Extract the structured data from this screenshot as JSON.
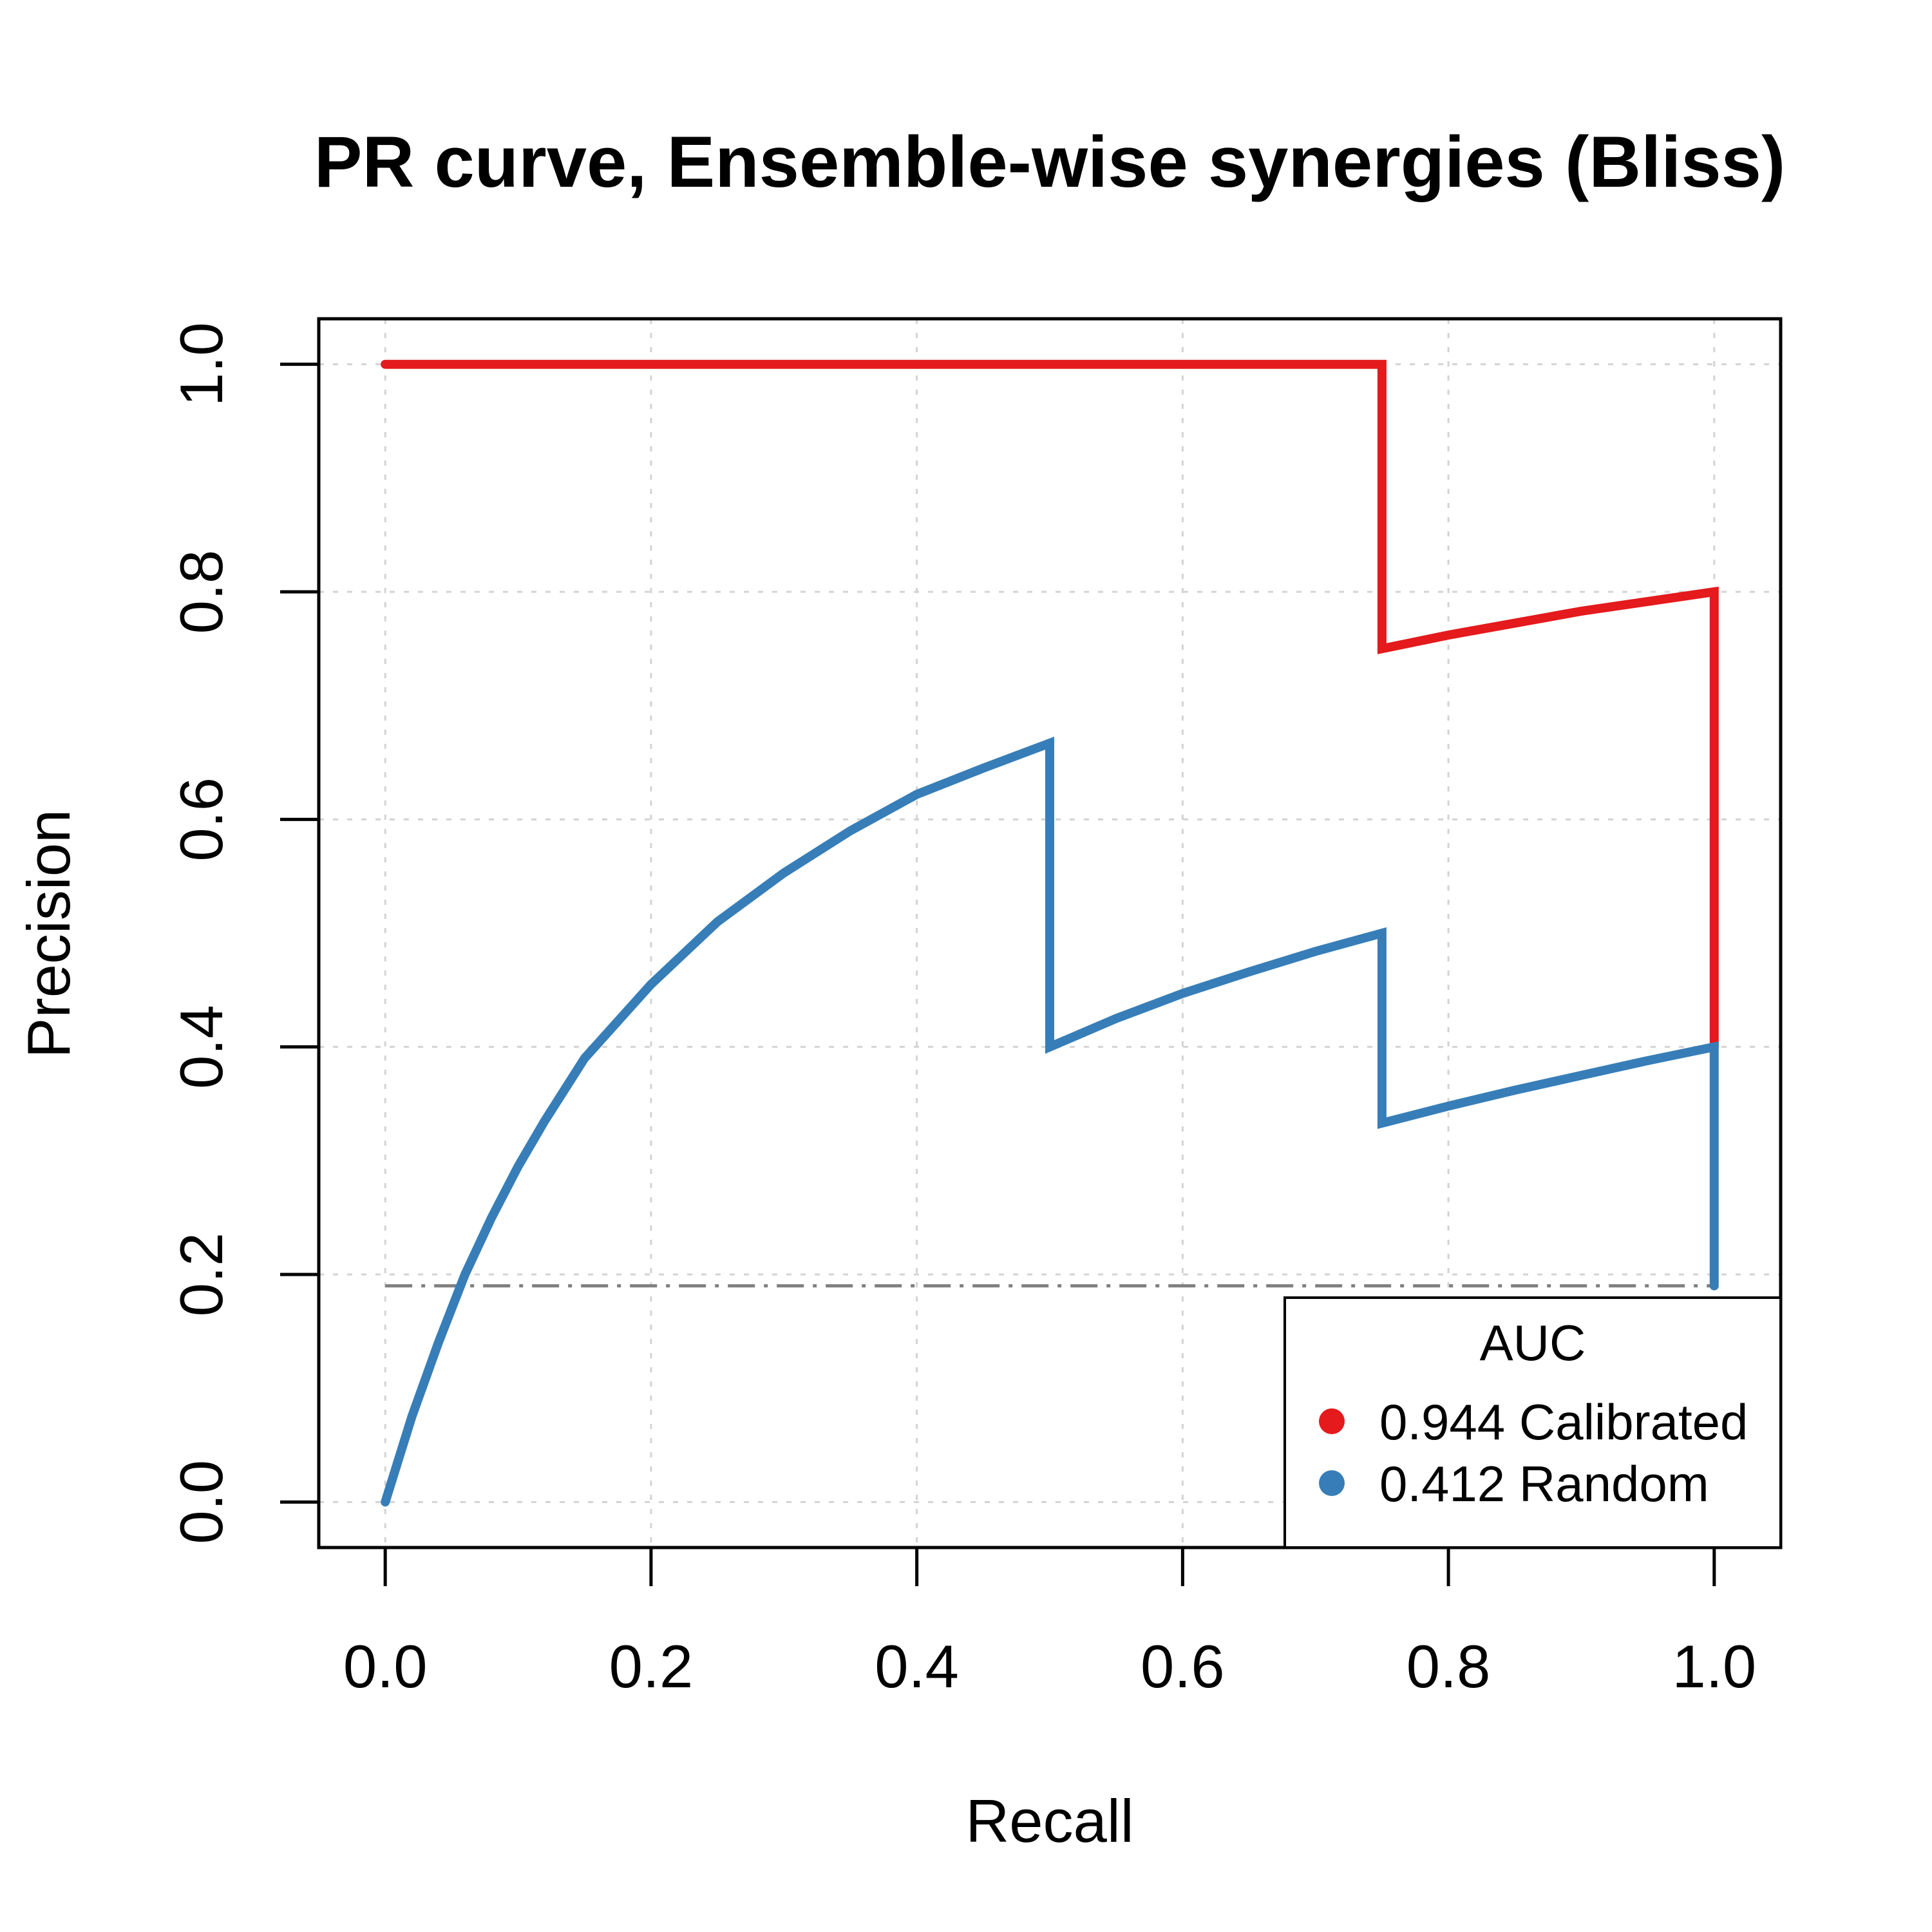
{
  "chart_data": {
    "type": "line",
    "title": "PR curve, Ensemble-wise synergies (Bliss)",
    "xlabel": "Recall",
    "ylabel": "Precision",
    "xlim": [
      -0.05,
      1.05
    ],
    "ylim": [
      -0.04,
      1.04
    ],
    "xticks": [
      0.0,
      0.2,
      0.4,
      0.6,
      0.8,
      1.0
    ],
    "yticks": [
      0.0,
      0.2,
      0.4,
      0.6,
      0.8,
      1.0
    ],
    "xtick_labels": [
      "0.0",
      "0.2",
      "0.4",
      "0.6",
      "0.8",
      "1.0"
    ],
    "ytick_labels": [
      "0.0",
      "0.2",
      "0.4",
      "0.6",
      "0.8",
      "1.0"
    ],
    "grid": true,
    "baseline": 0.19,
    "series": [
      {
        "name": "0.944 Calibrated",
        "color": "#e41a1c",
        "auc": 0.944,
        "points": [
          [
            0.0,
            1.0
          ],
          [
            0.75,
            1.0
          ],
          [
            0.75,
            0.75
          ],
          [
            0.8,
            0.762
          ],
          [
            0.9,
            0.783
          ],
          [
            1.0,
            0.8
          ],
          [
            1.0,
            0.4
          ]
        ]
      },
      {
        "name": "0.412 Random",
        "color": "#377eb8",
        "auc": 0.412,
        "points": [
          [
            0.0,
            0.0
          ],
          [
            0.02,
            0.075
          ],
          [
            0.04,
            0.14
          ],
          [
            0.06,
            0.2
          ],
          [
            0.08,
            0.25
          ],
          [
            0.1,
            0.295
          ],
          [
            0.12,
            0.335
          ],
          [
            0.15,
            0.39
          ],
          [
            0.2,
            0.455
          ],
          [
            0.25,
            0.51
          ],
          [
            0.3,
            0.553
          ],
          [
            0.35,
            0.59
          ],
          [
            0.4,
            0.622
          ],
          [
            0.45,
            0.645
          ],
          [
            0.5,
            0.667
          ],
          [
            0.5,
            0.4
          ],
          [
            0.55,
            0.425
          ],
          [
            0.6,
            0.447
          ],
          [
            0.65,
            0.466
          ],
          [
            0.7,
            0.484
          ],
          [
            0.75,
            0.5
          ],
          [
            0.75,
            0.333
          ],
          [
            0.8,
            0.348
          ],
          [
            0.85,
            0.362
          ],
          [
            0.9,
            0.375
          ],
          [
            0.95,
            0.388
          ],
          [
            1.0,
            0.4
          ],
          [
            1.0,
            0.19
          ]
        ]
      }
    ],
    "legend": {
      "title": "AUC",
      "position": "bottom-right",
      "entries": [
        "0.944 Calibrated",
        "0.412 Random"
      ]
    }
  }
}
